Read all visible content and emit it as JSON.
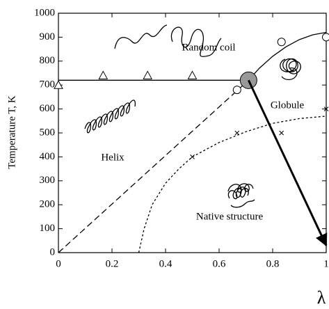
{
  "chart_data": {
    "type": "scatter",
    "ylabel": "Temperature T, K",
    "xlabel": "λ",
    "xlim": [
      0,
      1
    ],
    "ylim": [
      0,
      1000
    ],
    "xticks": [
      0,
      0.2,
      0.4,
      0.6,
      0.8,
      1
    ],
    "yticks": [
      0,
      100,
      200,
      300,
      400,
      500,
      600,
      700,
      800,
      900,
      1000
    ],
    "annotations": [
      "Random coil",
      "Globule",
      "Helix",
      "Native structure"
    ],
    "series": [
      {
        "marker": "line",
        "style": "solid",
        "color": "#000000",
        "x": [
          0,
          0.71
        ],
        "values": [
          720,
          720
        ]
      },
      {
        "marker": "line",
        "style": "solid",
        "color": "#000000",
        "x": [
          0.71,
          0.75,
          0.8,
          0.85,
          0.9,
          0.95,
          1
        ],
        "values": [
          720,
          770,
          820,
          860,
          890,
          910,
          920
        ]
      },
      {
        "marker": "line",
        "style": "dashed",
        "color": "#000000",
        "x": [
          0,
          0.71
        ],
        "values": [
          0,
          720
        ]
      },
      {
        "marker": "line",
        "style": "dotted",
        "color": "#000000",
        "x": [
          0.3,
          0.32,
          0.35,
          0.4,
          0.45,
          0.5,
          0.6,
          0.7,
          0.8,
          0.9,
          1
        ],
        "values": [
          0,
          100,
          200,
          290,
          350,
          400,
          460,
          505,
          540,
          560,
          570
        ]
      },
      {
        "marker": "triangle",
        "color": "#000000",
        "x": [
          0,
          0.167,
          0.333,
          0.5
        ],
        "values": [
          700,
          740,
          740,
          740
        ]
      },
      {
        "marker": "circle",
        "color": "#000000",
        "x": [
          0.667,
          0.833,
          1
        ],
        "values": [
          680,
          880,
          900
        ]
      },
      {
        "marker": "cross",
        "color": "#000000",
        "x": [
          0.5,
          0.667,
          0.833,
          1
        ],
        "values": [
          400,
          500,
          500,
          600
        ]
      },
      {
        "marker": "disk",
        "color": "#999999",
        "x": [
          0.71
        ],
        "values": [
          720
        ]
      },
      {
        "marker": "arrow",
        "color": "#000000",
        "x": [
          0.71,
          1
        ],
        "values": [
          720,
          30
        ]
      }
    ]
  }
}
